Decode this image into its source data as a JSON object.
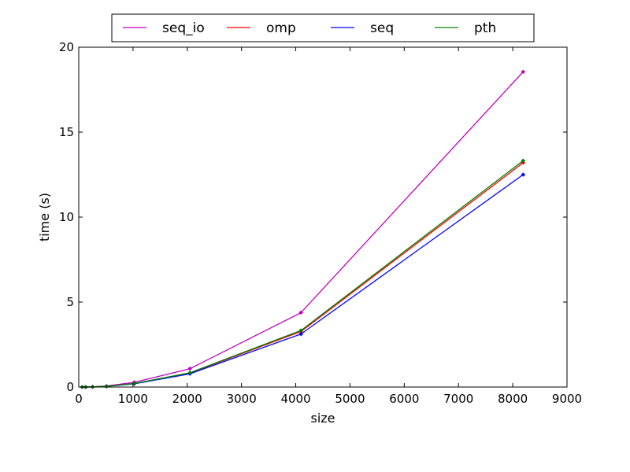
{
  "chart_data": {
    "type": "line",
    "title": "",
    "xlabel": "size",
    "ylabel": "time (s)",
    "xlim": [
      0,
      9000
    ],
    "ylim": [
      0,
      20
    ],
    "xticks": [
      0,
      1000,
      2000,
      3000,
      4000,
      5000,
      6000,
      7000,
      8000,
      9000
    ],
    "yticks": [
      0,
      5,
      10,
      15,
      20
    ],
    "grid": false,
    "legend_position": "top-center",
    "series": [
      {
        "name": "seq_io",
        "color": "#bf00bf",
        "x": [
          64,
          128,
          256,
          512,
          1024,
          2048,
          4096,
          8192
        ],
        "y": [
          0.0,
          0.0,
          0.01,
          0.06,
          0.28,
          1.08,
          4.38,
          18.55
        ]
      },
      {
        "name": "omp",
        "color": "#ff0000",
        "x": [
          64,
          128,
          256,
          512,
          1024,
          2048,
          4096,
          8192
        ],
        "y": [
          0.0,
          0.0,
          0.01,
          0.04,
          0.2,
          0.82,
          3.27,
          13.2
        ]
      },
      {
        "name": "seq",
        "color": "#0000ff",
        "x": [
          64,
          128,
          256,
          512,
          1024,
          2048,
          4096,
          8192
        ],
        "y": [
          0.0,
          0.0,
          0.01,
          0.04,
          0.19,
          0.78,
          3.12,
          12.5
        ]
      },
      {
        "name": "pth",
        "color": "#008000",
        "x": [
          64,
          128,
          256,
          512,
          1024,
          2048,
          4096,
          8192
        ],
        "y": [
          0.0,
          0.0,
          0.01,
          0.04,
          0.21,
          0.84,
          3.33,
          13.32
        ]
      }
    ]
  }
}
